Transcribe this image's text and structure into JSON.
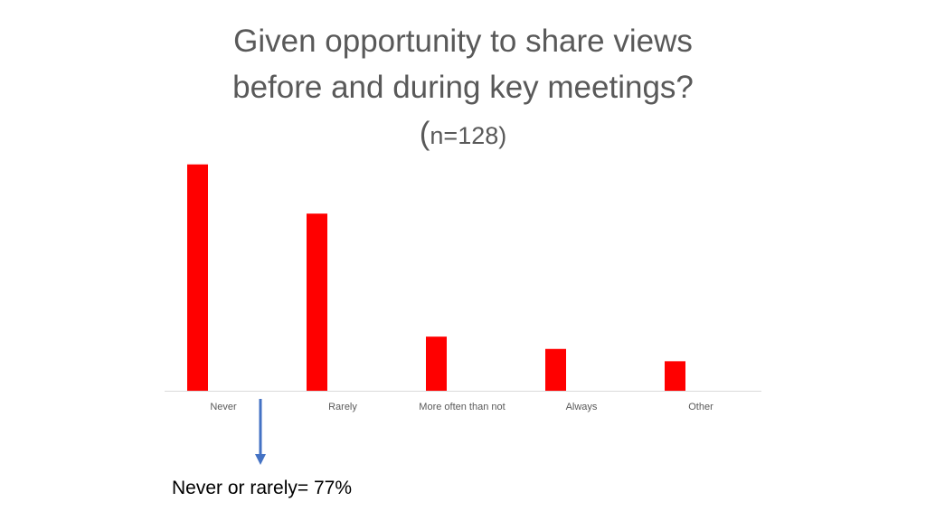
{
  "chart_data": {
    "type": "bar",
    "title_main": "Given opportunity to share views before and during key meetings?  (",
    "title_sample": "n=128)",
    "categories": [
      "Never",
      "Rarely",
      "More often than not",
      "Always",
      "Other"
    ],
    "values": [
      46,
      36,
      11,
      8.5,
      6
    ],
    "ylim": [
      0,
      50
    ],
    "grid": false,
    "bar_color": "#ff0000",
    "axis_color": "#d9d9d9"
  },
  "annotation": {
    "text": "Never or rarely= 77%",
    "arrow_color": "#4472c4"
  }
}
